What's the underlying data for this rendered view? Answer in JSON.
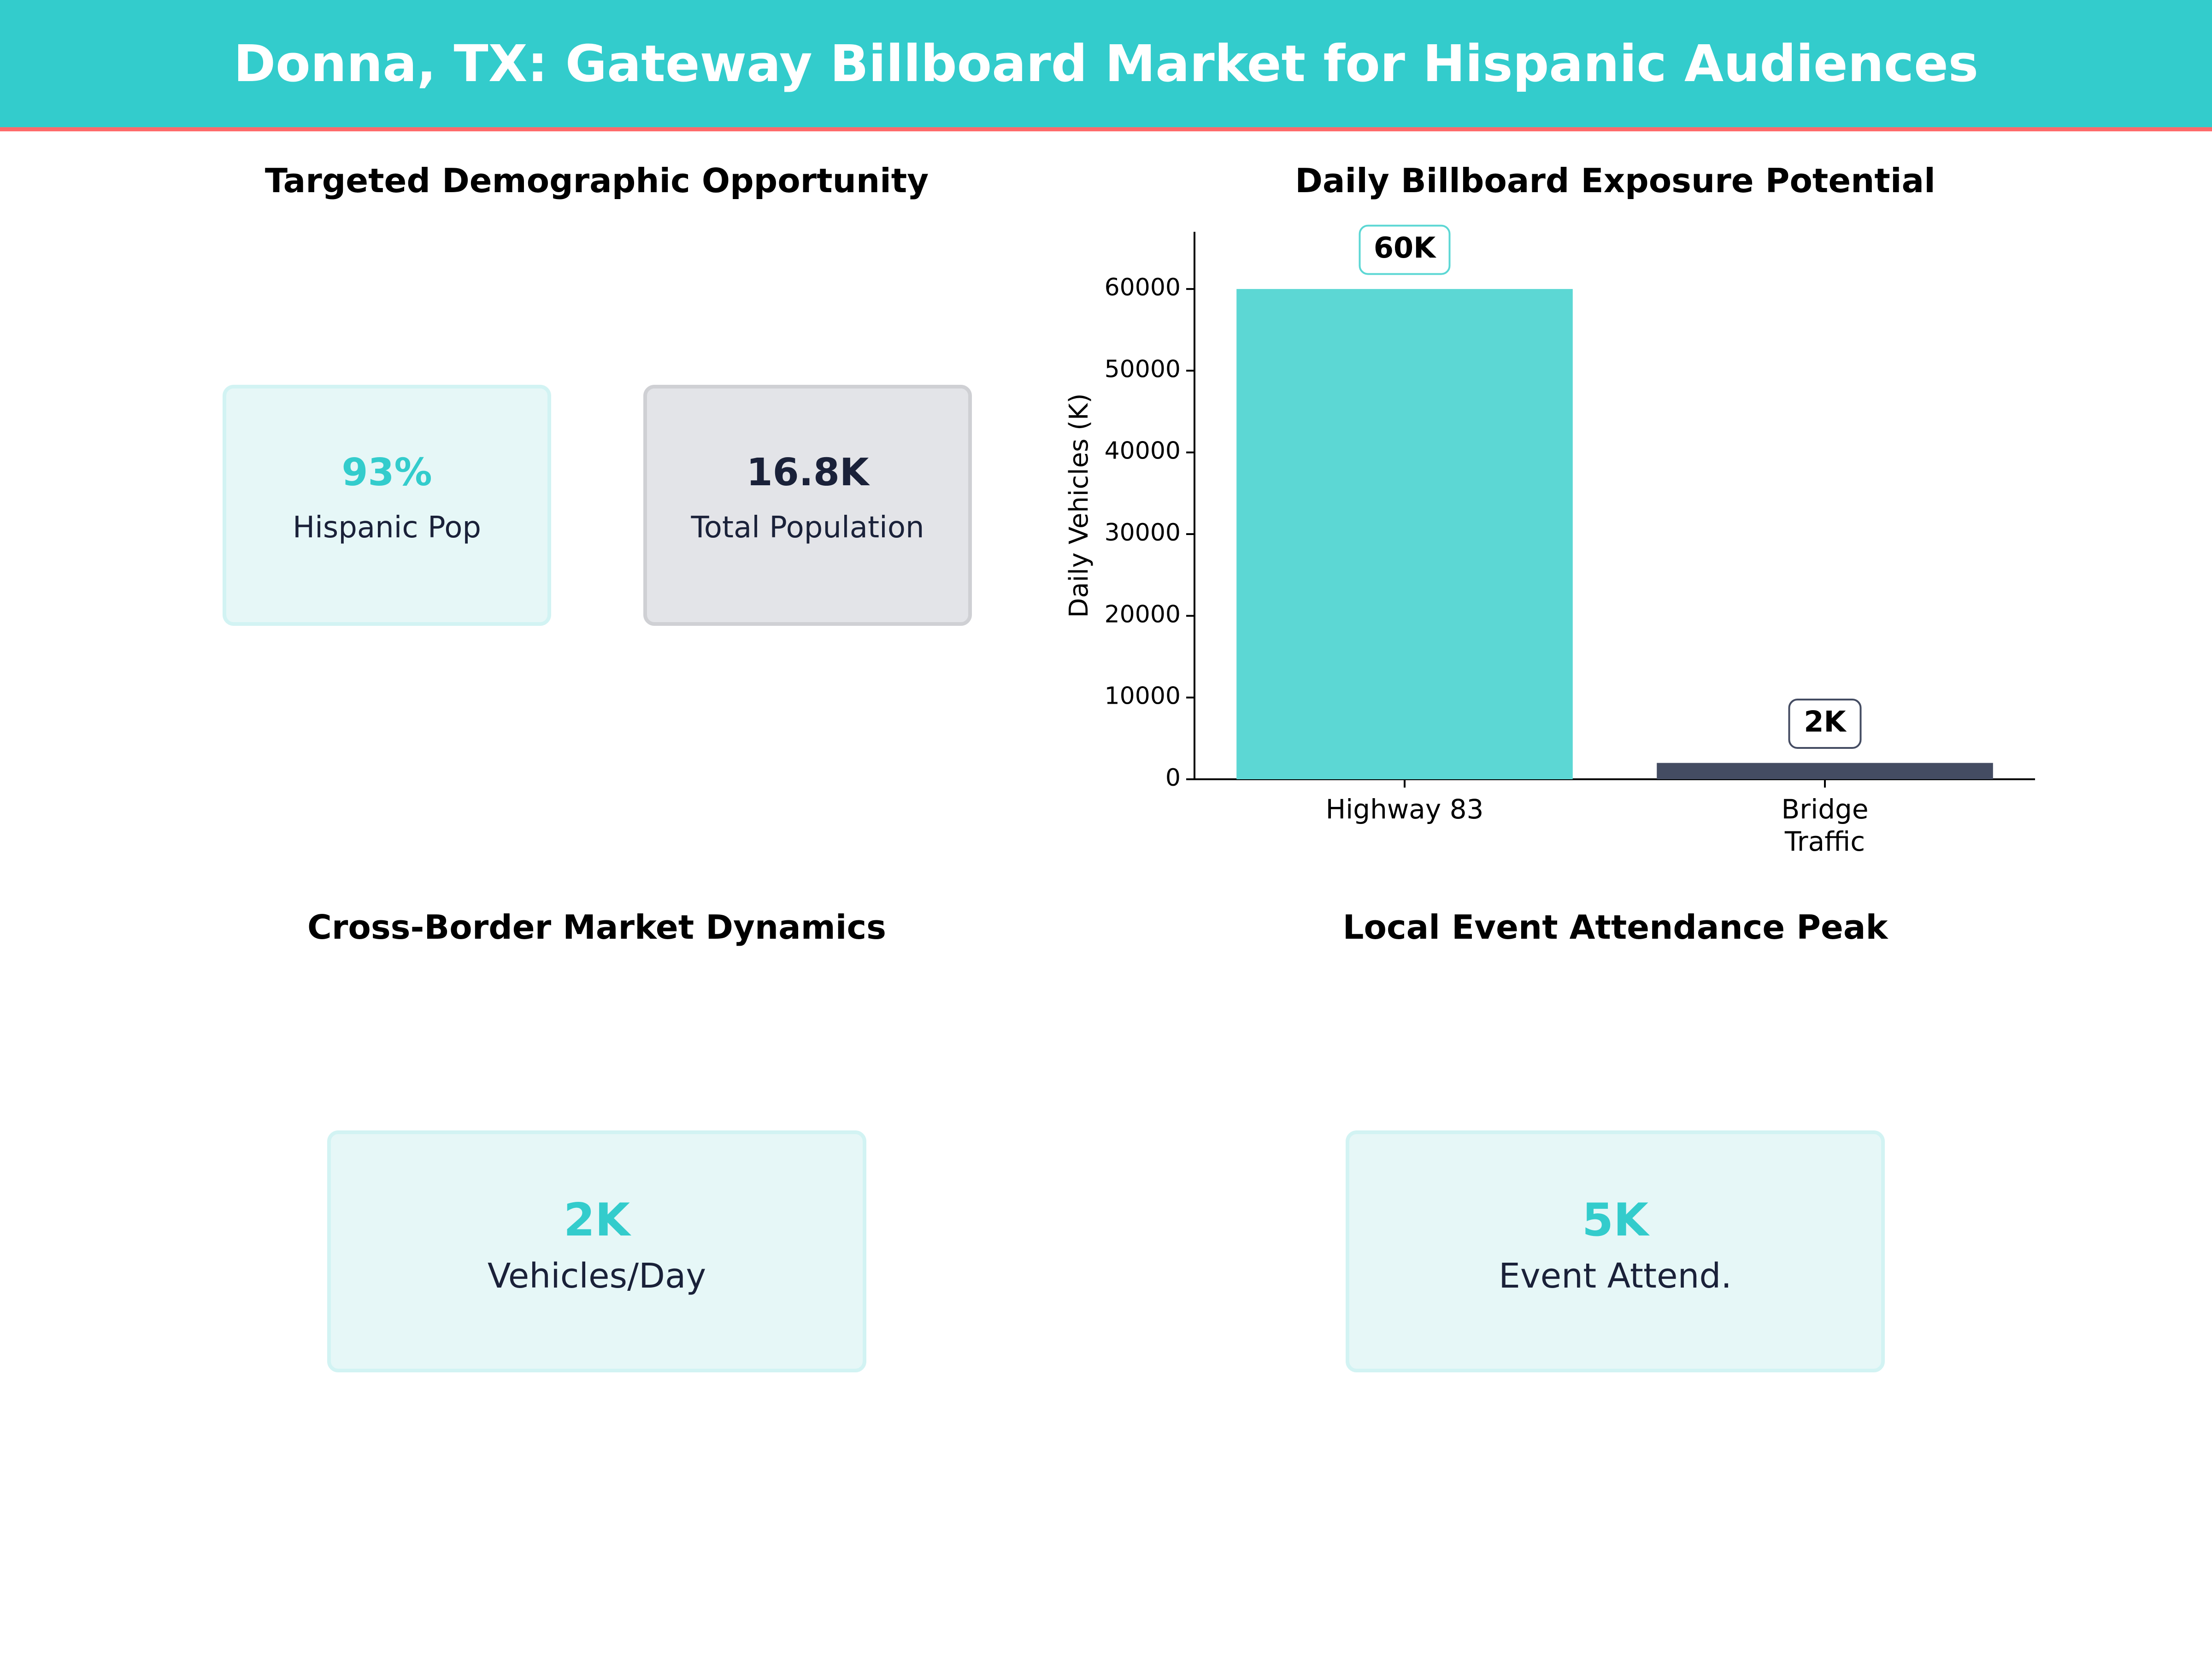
{
  "header": {
    "title": "Donna, TX: Gateway Billboard Market for Hispanic Audiences"
  },
  "colors": {
    "accent": "#33cccc",
    "bar_primary": "#5cd7d4",
    "bar_secondary": "#444c62",
    "dark_text": "#1a2139",
    "header_border": "#ff6b6b"
  },
  "panels": {
    "demographic": {
      "title": "Targeted Demographic Opportunity",
      "cards": [
        {
          "value": "93%",
          "label": "Hispanic Pop"
        },
        {
          "value": "16.8K",
          "label": "Total Population"
        }
      ]
    },
    "exposure": {
      "title": "Daily Billboard Exposure Potential"
    },
    "cross_border": {
      "title": "Cross-Border Market Dynamics",
      "card": {
        "value": "2K",
        "label": "Vehicles/Day"
      }
    },
    "event": {
      "title": "Local Event Attendance Peak",
      "card": {
        "value": "5K",
        "label": "Event Attend."
      }
    }
  },
  "chart_data": {
    "type": "bar",
    "title": "Daily Billboard Exposure Potential",
    "categories": [
      "Highway 83",
      "Bridge\nTraffic"
    ],
    "values": [
      60000,
      2000
    ],
    "data_labels": [
      "60K",
      "2K"
    ],
    "xlabel": "",
    "ylabel": "Daily Vehicles (K)",
    "ylim": [
      0,
      67000
    ],
    "yticks": [
      0,
      10000,
      20000,
      30000,
      40000,
      50000,
      60000
    ],
    "grid": false,
    "legend": "none"
  }
}
